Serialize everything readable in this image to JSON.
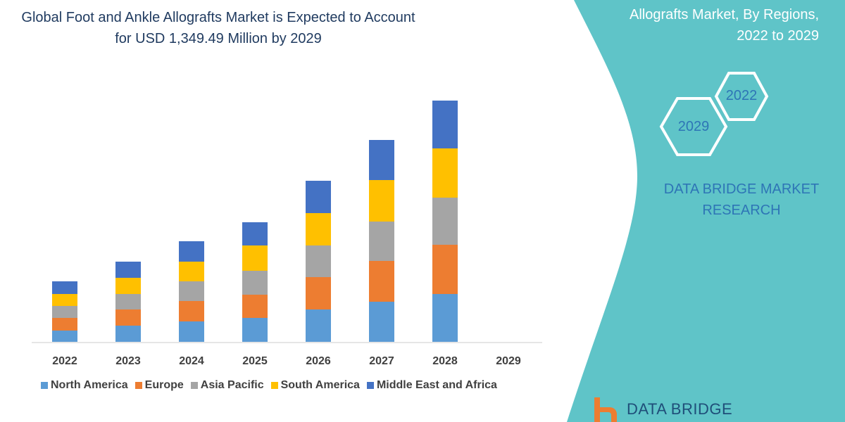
{
  "header": {
    "title_line1": "Global Foot and Ankle Allografts Market is Expected to Account",
    "title_line2": "for USD 1,349.49 Million by 2029"
  },
  "side_panel": {
    "title_line1": "Allografts Market,  By Regions,",
    "title_line2": "2022 to 2029",
    "hex_start": "2022",
    "hex_end": "2029",
    "brand_line1": "DATA BRIDGE MARKET",
    "brand_line2": "RESEARCH",
    "logo_text": "DATA BRIDGE",
    "panel_color": "#5fc4c8"
  },
  "chart_data": {
    "type": "bar",
    "stacked": true,
    "title": "Global Foot and Ankle Allografts Market is Expected to Account for USD 1,349.49 Million by 2029",
    "xlabel": "",
    "ylabel": "",
    "y_axis_shown": false,
    "grid": false,
    "legend_placement": "bottom",
    "categories": [
      "2022",
      "2023",
      "2024",
      "2025",
      "2026",
      "2027",
      "2028",
      "2029"
    ],
    "series": [
      {
        "name": "North America",
        "color": "#5b9bd5",
        "values": [
          16,
          23,
          29,
          34,
          46,
          57,
          68,
          null
        ]
      },
      {
        "name": "Europe",
        "color": "#ed7d31",
        "values": [
          18,
          23,
          29,
          33,
          46,
          58,
          70,
          null
        ]
      },
      {
        "name": "Asia Pacific",
        "color": "#a5a5a5",
        "values": [
          17,
          22,
          28,
          34,
          45,
          56,
          67,
          null
        ]
      },
      {
        "name": "South America",
        "color": "#ffc000",
        "values": [
          17,
          23,
          28,
          36,
          46,
          59,
          70,
          null
        ]
      },
      {
        "name": "Middle East and Africa",
        "color": "#4472c4",
        "values": [
          18,
          23,
          29,
          33,
          46,
          57,
          68,
          null
        ]
      }
    ]
  }
}
